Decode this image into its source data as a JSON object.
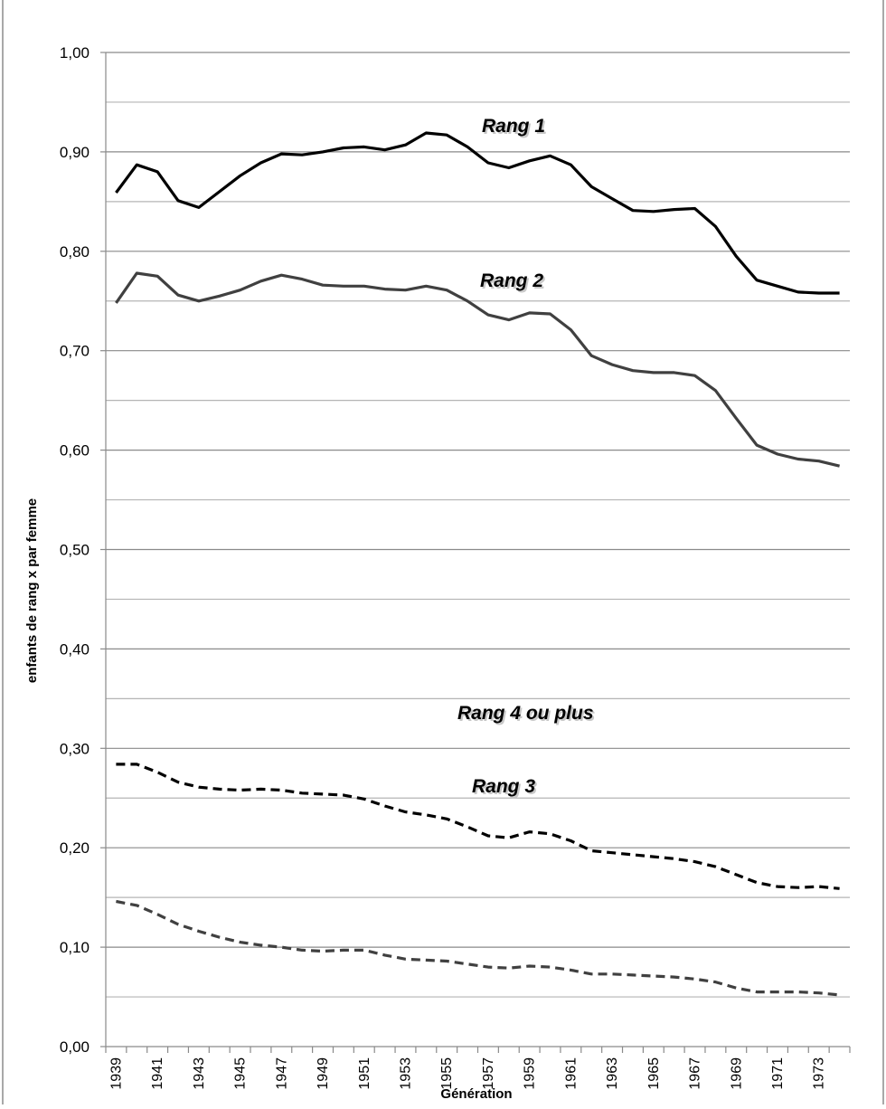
{
  "chart_data": {
    "type": "line",
    "title": "",
    "xlabel": "Génération",
    "ylabel": "enfants de rang x par femme",
    "ylim": [
      0,
      1
    ],
    "grid": true,
    "legend": "labels on lines",
    "y_ticks": [
      "0,00",
      "0,10",
      "0,20",
      "0,30",
      "0,40",
      "0,50",
      "0,60",
      "0,70",
      "0,80",
      "0,90",
      "1,00"
    ],
    "x_ticks": [
      "1939",
      "1941",
      "1943",
      "1945",
      "1947",
      "1949",
      "1951",
      "1953",
      "1955",
      "1957",
      "1959",
      "1961",
      "1963",
      "1965",
      "1967",
      "1969",
      "1971",
      "1973"
    ],
    "x": [
      1939,
      1940,
      1941,
      1942,
      1943,
      1944,
      1945,
      1946,
      1947,
      1948,
      1949,
      1950,
      1951,
      1952,
      1953,
      1954,
      1955,
      1956,
      1957,
      1958,
      1959,
      1960,
      1961,
      1962,
      1963,
      1964,
      1965,
      1966,
      1967,
      1968,
      1969,
      1970,
      1971,
      1972,
      1973,
      1974
    ],
    "series": [
      {
        "name": "Rang 1",
        "color": "#000000",
        "dash": false,
        "values": [
          0.859,
          0.887,
          0.88,
          0.851,
          0.844,
          0.86,
          0.876,
          0.889,
          0.898,
          0.897,
          0.9,
          0.904,
          0.905,
          0.902,
          0.907,
          0.919,
          0.917,
          0.905,
          0.889,
          0.884,
          0.891,
          0.896,
          0.887,
          0.865,
          0.853,
          0.841,
          0.84,
          0.842,
          0.843,
          0.825,
          0.795,
          0.771,
          0.765,
          0.759,
          0.758,
          0.758
        ]
      },
      {
        "name": "Rang 2",
        "color": "#404040",
        "dash": false,
        "values": [
          0.748,
          0.778,
          0.775,
          0.756,
          0.75,
          0.755,
          0.761,
          0.77,
          0.776,
          0.772,
          0.766,
          0.765,
          0.765,
          0.762,
          0.761,
          0.765,
          0.761,
          0.75,
          0.736,
          0.731,
          0.738,
          0.737,
          0.721,
          0.695,
          0.686,
          0.68,
          0.678,
          0.678,
          0.675,
          0.66,
          0.632,
          0.605,
          0.596,
          0.591,
          0.589,
          0.584
        ]
      },
      {
        "name": "Rang 3",
        "color": "#000000",
        "dash": true,
        "values": [
          0.284,
          0.284,
          0.276,
          0.266,
          0.261,
          0.259,
          0.258,
          0.259,
          0.258,
          0.255,
          0.254,
          0.253,
          0.249,
          0.242,
          0.236,
          0.233,
          0.229,
          0.221,
          0.212,
          0.21,
          0.216,
          0.214,
          0.207,
          0.197,
          0.195,
          0.193,
          0.191,
          0.189,
          0.186,
          0.181,
          0.173,
          0.165,
          0.161,
          0.16,
          0.161,
          0.159
        ]
      },
      {
        "name": "Rang 4 ou plus",
        "color": "#404040",
        "dash": true,
        "values": [
          0.146,
          0.142,
          0.133,
          0.123,
          0.116,
          0.11,
          0.105,
          0.102,
          0.1,
          0.097,
          0.096,
          0.097,
          0.097,
          0.092,
          0.088,
          0.087,
          0.086,
          0.083,
          0.08,
          0.079,
          0.081,
          0.08,
          0.077,
          0.073,
          0.073,
          0.072,
          0.071,
          0.07,
          0.068,
          0.065,
          0.059,
          0.055,
          0.055,
          0.055,
          0.054,
          0.052
        ]
      }
    ]
  }
}
